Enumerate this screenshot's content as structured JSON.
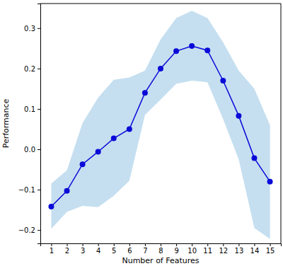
{
  "chart_data": {
    "type": "line",
    "x_label": "Number of Features",
    "y_label": "Performance",
    "x": [
      1,
      2,
      3,
      4,
      5,
      6,
      7,
      8,
      9,
      10,
      11,
      12,
      13,
      14,
      15
    ],
    "values": [
      -0.142,
      -0.103,
      -0.037,
      -0.006,
      0.027,
      0.05,
      0.14,
      0.2,
      0.243,
      0.256,
      0.245,
      0.17,
      0.083,
      -0.022,
      -0.08
    ],
    "lower": [
      -0.197,
      -0.155,
      -0.14,
      -0.143,
      -0.115,
      -0.078,
      0.085,
      0.123,
      0.162,
      0.17,
      0.166,
      0.075,
      -0.025,
      -0.195,
      -0.222
    ],
    "upper": [
      -0.085,
      -0.052,
      0.065,
      0.128,
      0.172,
      0.178,
      0.195,
      0.272,
      0.325,
      0.343,
      0.325,
      0.265,
      0.195,
      0.15,
      0.06
    ],
    "color": "#0a0ad8",
    "marker": "circle",
    "grid": false,
    "xlim": [
      0.3,
      15.7
    ],
    "xticks": [
      1,
      2,
      3,
      4,
      5,
      6,
      7,
      8,
      9,
      10,
      11,
      12,
      13,
      14,
      15
    ],
    "ylim": [
      -0.233,
      0.361
    ],
    "yticks": [
      {
        "value": -0.2,
        "label": "−0.2"
      },
      {
        "value": -0.1,
        "label": "−0.1"
      },
      {
        "value": 0.0,
        "label": "0.0"
      },
      0.1,
      0.2,
      0.3
    ]
  }
}
